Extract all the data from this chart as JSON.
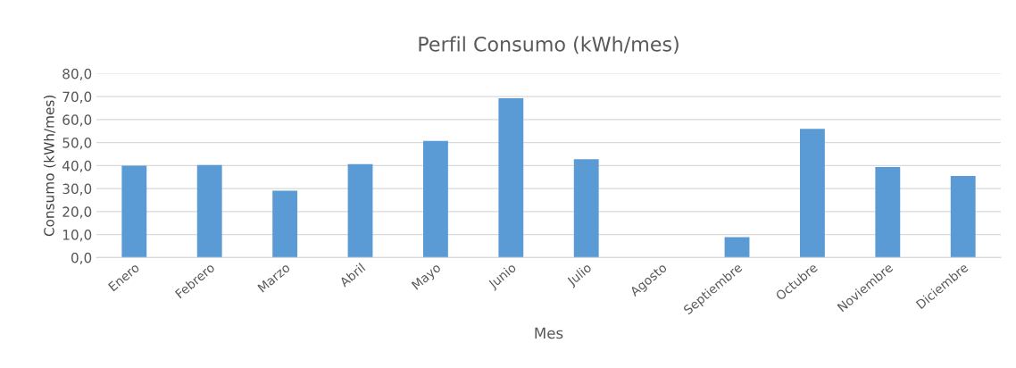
{
  "chart_data": {
    "type": "bar",
    "title": "Perfil Consumo (kWh/mes)",
    "xlabel": "Mes",
    "ylabel": "Consumo (kWh/mes)",
    "categories": [
      "Enero",
      "Febrero",
      "Marzo",
      "Abril",
      "Mayo",
      "Junio",
      "Julio",
      "Agosto",
      "Septiembre",
      "Octubre",
      "Noviembre",
      "Diciembre"
    ],
    "values": [
      40.0,
      40.3,
      29.1,
      40.6,
      50.7,
      69.3,
      42.8,
      0,
      8.9,
      56.0,
      39.4,
      35.5
    ],
    "color": "#5b9bd5",
    "ylim": [
      0,
      80
    ],
    "yticks": [
      {
        "value": 0,
        "label": "0,0"
      },
      {
        "value": 10,
        "label": "10,0"
      },
      {
        "value": 20,
        "label": "20,0"
      },
      {
        "value": 30,
        "label": "30,0"
      },
      {
        "value": 40,
        "label": "40,0"
      },
      {
        "value": 50,
        "label": "50,0"
      },
      {
        "value": 60,
        "label": "60,0"
      },
      {
        "value": 70,
        "label": "70,0"
      },
      {
        "value": 80,
        "label": "80,0"
      }
    ],
    "grid": "y"
  }
}
